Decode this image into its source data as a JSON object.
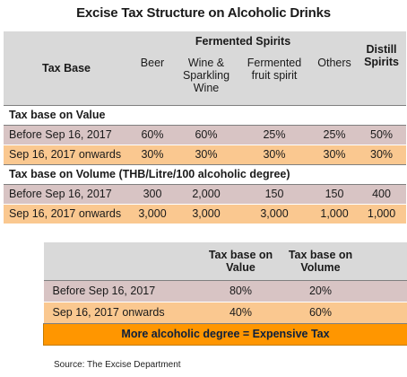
{
  "title": "Excise Tax Structure on Alcoholic Drinks",
  "main_table": {
    "tax_base_header": "Tax Base",
    "group_header": "Fermented Spirits",
    "distill_header_line1": "Distill",
    "distill_header_line2": "Spirits",
    "columns": [
      "Beer",
      "Wine & Sparkling Wine",
      "Fermented fruit spirit",
      "Others",
      "Distill Spirits"
    ],
    "column_lines": {
      "beer": [
        "Beer"
      ],
      "wine": [
        "Wine &",
        "Sparkling",
        "Wine"
      ],
      "fruit": [
        "Fermented",
        "fruit spirit"
      ],
      "others": [
        "Others"
      ]
    },
    "sections": [
      {
        "heading": "Tax base on Value",
        "rows": [
          {
            "label": "Before Sep 16, 2017",
            "values": [
              "60%",
              "60%",
              "25%",
              "25%",
              "50%"
            ]
          },
          {
            "label": "Sep 16, 2017 onwards",
            "values": [
              "30%",
              "30%",
              "30%",
              "30%",
              "30%"
            ]
          }
        ]
      },
      {
        "heading": "Tax base on Volume (THB/Litre/100 alcoholic degree)",
        "rows": [
          {
            "label": "Before Sep 16, 2017",
            "values": [
              "300",
              "2,000",
              "150",
              "150",
              "400"
            ]
          },
          {
            "label": "Sep 16, 2017 onwards",
            "values": [
              "3,000",
              "3,000",
              "3,000",
              "1,000",
              "1,000"
            ]
          }
        ]
      }
    ]
  },
  "summary_table": {
    "headers": [
      "Tax base on Value",
      "Tax base on Volume"
    ],
    "header_lines": {
      "value": [
        "Tax base on",
        "Value"
      ],
      "volume": [
        "Tax base on",
        "Volume"
      ]
    },
    "rows": [
      {
        "label": "Before Sep 16, 2017",
        "values": [
          "80%",
          "20%"
        ]
      },
      {
        "label": "Sep 16, 2017 onwards",
        "values": [
          "40%",
          "60%"
        ]
      }
    ],
    "banner": "More alcoholic degree = Expensive Tax"
  },
  "source": "Source: The Excise Department",
  "colors": {
    "header_gray": "#d9d9d9",
    "row_mauve": "#d8c4c4",
    "row_peach": "#fac890",
    "banner_orange": "#ff9600"
  }
}
